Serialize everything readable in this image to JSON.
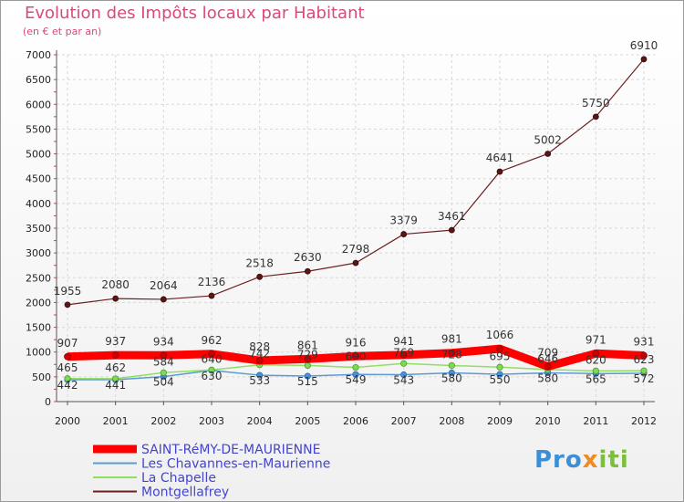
{
  "header": {
    "title": "Evolution des Impôts locaux par Habitant",
    "subtitle": "(en € et par an)"
  },
  "logo": {
    "text": "Proxiti"
  },
  "colors": {
    "saint_remy": "#ff0000",
    "chavannes": "#5b9bd5",
    "la_chapelle": "#90e060",
    "montgellafrey": "#6b2020",
    "grid": "#d8d8d8",
    "axis": "#555555"
  },
  "chart_data": {
    "type": "line",
    "title": "Evolution des Impôts locaux par Habitant",
    "subtitle": "(en € et par an)",
    "xlabel": "",
    "ylabel": "",
    "ylim": [
      0,
      7000
    ],
    "yticks": [
      0,
      500,
      1000,
      1500,
      2000,
      2500,
      3000,
      3500,
      4000,
      4500,
      5000,
      5500,
      6000,
      6500,
      7000
    ],
    "grid": true,
    "legend_position": "bottom-left",
    "categories": [
      "2000",
      "2001",
      "2002",
      "2003",
      "2004",
      "2005",
      "2006",
      "2007",
      "2008",
      "2009",
      "2010",
      "2011",
      "2012"
    ],
    "series": [
      {
        "name": "SAINT-RéMY-DE-MAURIENNE",
        "key": "saint_remy",
        "values": [
          907,
          937,
          934,
          962,
          828,
          861,
          916,
          941,
          981,
          1066,
          709,
          971,
          931
        ]
      },
      {
        "name": "Les Chavannes-en-Maurienne",
        "key": "chavannes",
        "values": [
          442,
          441,
          504,
          630,
          533,
          515,
          549,
          543,
          580,
          550,
          580,
          565,
          572
        ]
      },
      {
        "name": "La Chapelle",
        "key": "la_chapelle",
        "values": [
          465,
          462,
          584,
          640,
          742,
          729,
          690,
          769,
          728,
          695,
          646,
          620,
          623
        ]
      },
      {
        "name": "Montgellafrey",
        "key": "montgellafrey",
        "values": [
          1955,
          2080,
          2064,
          2136,
          2518,
          2630,
          2798,
          3379,
          3461,
          4641,
          5002,
          5750,
          6910
        ]
      }
    ]
  }
}
